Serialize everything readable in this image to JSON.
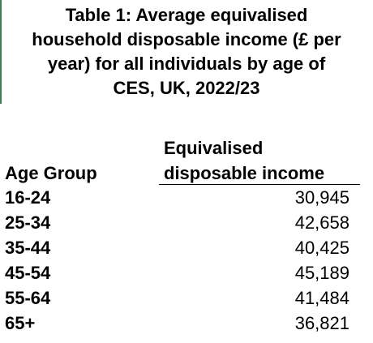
{
  "title": "Table 1: Average equivalised\nhousehold disposable income (£ per\nyear) for all individuals by age of\nCES, UK, 2022/23",
  "columns": {
    "age": "Age Group",
    "income": "Equivalised\ndisposable income"
  },
  "rows": [
    {
      "age": "16-24",
      "value": "30,945"
    },
    {
      "age": "25-34",
      "value": "42,658"
    },
    {
      "age": "35-44",
      "value": "40,425"
    },
    {
      "age": "45-54",
      "value": "45,189"
    },
    {
      "age": "55-64",
      "value": "41,484"
    },
    {
      "age": "65+",
      "value": "36,821"
    }
  ],
  "colors": {
    "accent": "#3f7f4f"
  }
}
